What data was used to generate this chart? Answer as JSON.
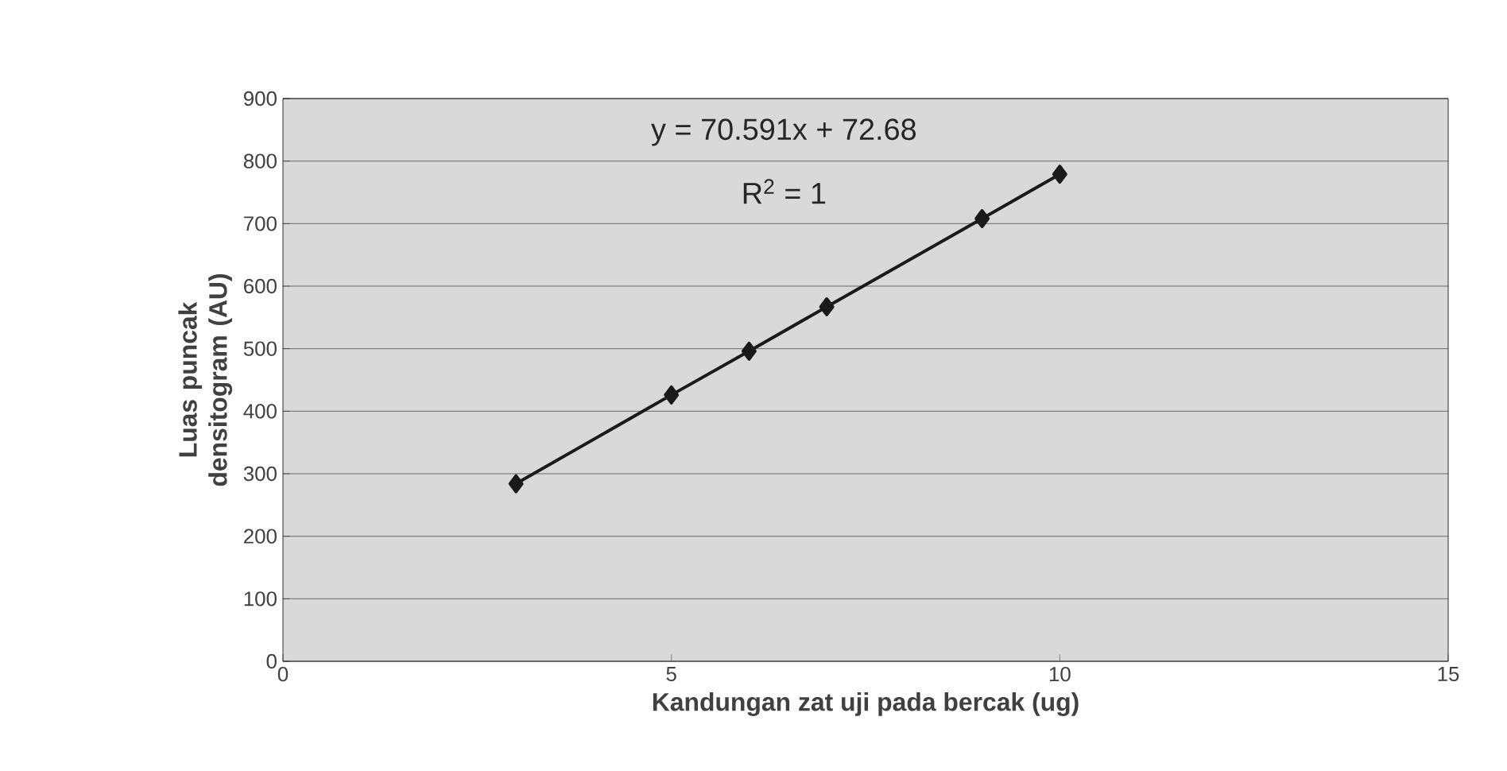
{
  "chart_data": {
    "type": "line",
    "xlabel": "Kandungan zat uji pada bercak (ug)",
    "ylabel": "Luas puncak densitogram (AU)",
    "annotations": [
      "y = 70.591x + 72.68",
      "R$^{2}$ = 1"
    ],
    "x": [
      3,
      5,
      6,
      7,
      9,
      10
    ],
    "series": [
      {
        "color": "#1a1a1a",
        "values": [
          284,
          426,
          496,
          567,
          708,
          779
        ]
      }
    ],
    "xlim": [
      0,
      15
    ],
    "xticks": [
      0,
      5,
      10,
      15
    ],
    "ylim": [
      0,
      900
    ],
    "yticks": [
      0,
      100,
      200,
      300,
      400,
      500,
      600,
      700,
      800,
      900
    ],
    "grid": "y",
    "marker": "diamond",
    "line_style": "solid"
  }
}
